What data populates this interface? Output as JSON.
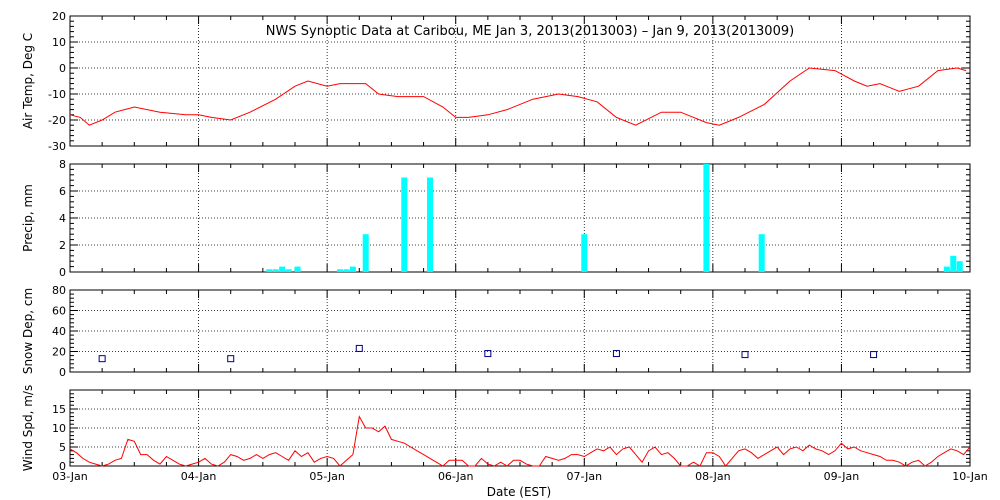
{
  "title": "NWS Synoptic Data at Caribou, ME   Jan  3, 2013(2013003) – Jan  9, 2013(2013009)",
  "xlabel": "Date (EST)",
  "x_tick_labels": [
    "03-Jan",
    "04-Jan",
    "05-Jan",
    "06-Jan",
    "07-Jan",
    "08-Jan",
    "09-Jan",
    "10-Jan"
  ],
  "colors": {
    "temp": "#ff0000",
    "precip": "#00ffff",
    "snow": "#000080",
    "wind": "#ff0000",
    "grid": "#000000"
  },
  "chart_data": [
    {
      "type": "line",
      "ylabel": "Air Temp, Deg C",
      "ylim": [
        -30,
        20
      ],
      "yticks": [
        -30,
        -20,
        -10,
        0,
        10,
        20
      ],
      "xlim": [
        0,
        7
      ],
      "grid": true,
      "series": [
        {
          "color": "#ff0000",
          "x": [
            0.0,
            0.08,
            0.15,
            0.25,
            0.35,
            0.5,
            0.7,
            0.9,
            1.0,
            1.1,
            1.25,
            1.4,
            1.6,
            1.75,
            1.85,
            2.0,
            2.1,
            2.3,
            2.4,
            2.55,
            2.75,
            2.9,
            3.0,
            3.1,
            3.25,
            3.4,
            3.6,
            3.8,
            3.95,
            4.1,
            4.25,
            4.4,
            4.6,
            4.75,
            4.95,
            5.05,
            5.2,
            5.4,
            5.6,
            5.75,
            5.95,
            6.1,
            6.2,
            6.3,
            6.45,
            6.6,
            6.75,
            6.9,
            6.97
          ],
          "y": [
            -18,
            -19,
            -22,
            -20,
            -17,
            -15,
            -17,
            -18,
            -18,
            -19,
            -20,
            -17,
            -12,
            -7,
            -5,
            -7,
            -6,
            -6,
            -10,
            -11,
            -11,
            -15,
            -19,
            -19,
            -18,
            -16,
            -12,
            -10,
            -11,
            -13,
            -19,
            -22,
            -17,
            -17,
            -21,
            -22,
            -19,
            -14,
            -5,
            0,
            -1,
            -5,
            -7,
            -6,
            -9,
            -7,
            -1,
            0,
            -1
          ]
        }
      ]
    },
    {
      "type": "bar",
      "ylabel": "Precip, mm",
      "ylim": [
        0,
        8
      ],
      "yticks": [
        0,
        2,
        4,
        6,
        8
      ],
      "xlim": [
        0,
        7
      ],
      "grid": true,
      "series": [
        {
          "color": "#00ffff",
          "x": [
            1.55,
            1.6,
            1.65,
            1.7,
            1.77,
            2.1,
            2.15,
            2.2,
            2.3,
            2.6,
            2.8,
            4.0,
            4.95,
            5.38,
            6.82,
            6.87,
            6.92
          ],
          "values": [
            0.2,
            0.2,
            0.4,
            0.2,
            0.4,
            0.2,
            0.2,
            0.4,
            2.8,
            7.0,
            7.0,
            2.8,
            8.0,
            2.8,
            0.4,
            1.2,
            0.8
          ]
        }
      ]
    },
    {
      "type": "scatter",
      "ylabel": "Snow Dep, cm",
      "ylim": [
        0,
        80
      ],
      "yticks": [
        0,
        20,
        40,
        60,
        80
      ],
      "xlim": [
        0,
        7
      ],
      "grid": true,
      "series": [
        {
          "color": "#000080",
          "x": [
            0.25,
            1.25,
            2.25,
            3.25,
            4.25,
            5.25,
            6.25
          ],
          "y": [
            13,
            13,
            23,
            18,
            18,
            17,
            17
          ]
        }
      ]
    },
    {
      "type": "line",
      "ylabel": "Wind Spd, m/s",
      "ylim": [
        0,
        20
      ],
      "yticks": [
        0,
        5,
        10,
        15
      ],
      "xlim": [
        0,
        7
      ],
      "grid": true,
      "series": [
        {
          "color": "#ff0000",
          "x": [
            0.0,
            0.05,
            0.1,
            0.15,
            0.2,
            0.25,
            0.3,
            0.35,
            0.4,
            0.45,
            0.5,
            0.55,
            0.6,
            0.65,
            0.7,
            0.75,
            0.8,
            0.85,
            0.9,
            0.95,
            1.0,
            1.05,
            1.1,
            1.15,
            1.2,
            1.25,
            1.3,
            1.35,
            1.4,
            1.45,
            1.5,
            1.55,
            1.6,
            1.65,
            1.7,
            1.75,
            1.8,
            1.85,
            1.9,
            1.95,
            2.0,
            2.05,
            2.1,
            2.15,
            2.2,
            2.25,
            2.3,
            2.35,
            2.4,
            2.45,
            2.5,
            2.55,
            2.6,
            2.65,
            2.7,
            2.75,
            2.8,
            2.85,
            2.9,
            2.95,
            3.0,
            3.05,
            3.1,
            3.15,
            3.2,
            3.25,
            3.3,
            3.35,
            3.4,
            3.45,
            3.5,
            3.55,
            3.6,
            3.65,
            3.7,
            3.75,
            3.8,
            3.85,
            3.9,
            3.95,
            4.0,
            4.05,
            4.1,
            4.15,
            4.2,
            4.25,
            4.3,
            4.35,
            4.4,
            4.45,
            4.5,
            4.55,
            4.6,
            4.65,
            4.7,
            4.75,
            4.8,
            4.85,
            4.9,
            4.95,
            5.0,
            5.05,
            5.1,
            5.15,
            5.2,
            5.25,
            5.3,
            5.35,
            5.4,
            5.45,
            5.5,
            5.55,
            5.6,
            5.65,
            5.7,
            5.75,
            5.8,
            5.85,
            5.9,
            5.95,
            6.0,
            6.05,
            6.1,
            6.15,
            6.2,
            6.25,
            6.3,
            6.35,
            6.4,
            6.45,
            6.5,
            6.55,
            6.6,
            6.65,
            6.7,
            6.75,
            6.8,
            6.85,
            6.9,
            6.95,
            7.0
          ],
          "y": [
            4.5,
            3.5,
            2,
            1,
            0.5,
            0,
            0.5,
            1.5,
            2,
            7,
            6.5,
            3,
            3,
            1.5,
            0.5,
            2.5,
            1.5,
            0.5,
            0,
            0.5,
            1,
            2,
            0.5,
            0,
            1,
            3,
            2.5,
            1.5,
            2,
            3,
            2,
            3,
            3.5,
            2.5,
            1.5,
            4,
            2.5,
            3.5,
            1,
            2,
            2.5,
            2,
            0,
            1.5,
            3,
            13,
            10,
            10,
            9,
            10.5,
            7,
            6.5,
            6,
            5,
            4,
            3,
            2,
            1,
            0,
            1.5,
            1.5,
            1.5,
            0,
            0,
            2,
            0.5,
            0,
            1,
            0,
            1.5,
            1.5,
            0.5,
            0,
            0,
            2.5,
            2,
            1.5,
            2,
            3,
            3,
            2.5,
            3.5,
            4.5,
            4,
            5,
            3,
            4.5,
            5,
            3,
            1,
            4,
            5,
            3,
            3.5,
            2,
            0,
            0,
            1,
            0,
            3.5,
            3.5,
            2.5,
            0,
            2,
            4,
            4.5,
            3.5,
            2,
            3,
            4,
            5,
            3,
            4.5,
            5,
            4,
            5.5,
            4.5,
            4,
            3,
            4,
            6,
            4.5,
            5,
            4,
            3.5,
            3,
            2.5,
            1.5,
            1.5,
            1,
            0,
            1,
            1.5,
            0,
            1,
            2.5,
            3.5,
            4.5,
            4,
            3,
            5
          ]
        }
      ]
    }
  ]
}
